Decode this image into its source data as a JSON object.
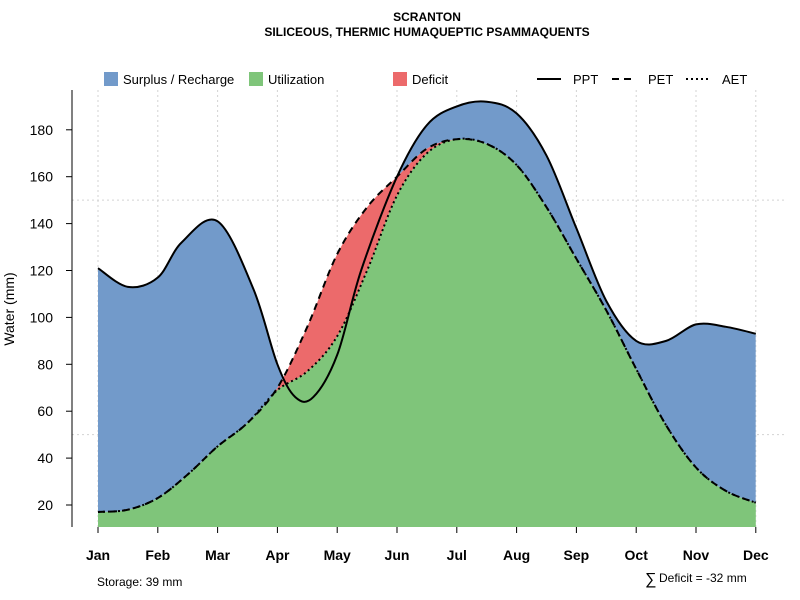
{
  "chart_data": {
    "type": "area",
    "title": "SCRANTON",
    "subtitle": "SILICEOUS, THERMIC HUMAQUEPTIC PSAMMAQUENTS",
    "ylabel": "Water (mm)",
    "xlabel": "",
    "ylim": [
      10,
      197
    ],
    "yticks": [
      20,
      40,
      60,
      80,
      100,
      120,
      140,
      160,
      180
    ],
    "categories": [
      "Jan",
      "Feb",
      "Mar",
      "Apr",
      "May",
      "Jun",
      "Jul",
      "Aug",
      "Sep",
      "Oct",
      "Nov",
      "Dec"
    ],
    "series": [
      {
        "name": "PPT",
        "style": "solid",
        "x": [
          1,
          1.5,
          2,
          2.4,
          3,
          3.6,
          4,
          4.3,
          4.6,
          5,
          5.4,
          6,
          6.5,
          7,
          7.5,
          8,
          8.5,
          9,
          9.5,
          10,
          10.5,
          11,
          11.5,
          12
        ],
        "values": [
          121,
          113,
          117,
          132,
          141,
          112,
          80,
          66,
          66,
          84,
          120,
          160,
          182,
          190,
          192,
          187,
          169,
          138,
          107,
          90,
          90,
          97,
          96,
          93
        ]
      },
      {
        "name": "PET",
        "style": "dashed",
        "x": [
          1,
          1.5,
          2,
          2.5,
          3,
          3.5,
          4,
          4.5,
          5,
          5.5,
          6,
          6.5,
          7,
          7.5,
          8,
          8.5,
          9,
          9.5,
          10,
          10.5,
          11,
          11.5,
          12
        ],
        "values": [
          17,
          18,
          23,
          33,
          45,
          55,
          70,
          96,
          127,
          147,
          160,
          172,
          176,
          174,
          165,
          147,
          125,
          103,
          78,
          54,
          36,
          26,
          21
        ]
      },
      {
        "name": "AET",
        "style": "dotted",
        "x": [
          1,
          1.5,
          2,
          2.5,
          3,
          3.5,
          4,
          4.5,
          5,
          5.5,
          6,
          6.5,
          7,
          7.5,
          8,
          8.5,
          9,
          9.5,
          10,
          10.5,
          11,
          11.5,
          12
        ],
        "values": [
          17,
          18,
          23,
          33,
          45,
          55,
          69,
          77,
          92,
          120,
          152,
          170,
          176,
          174,
          165,
          147,
          125,
          103,
          78,
          54,
          36,
          26,
          21
        ]
      }
    ],
    "legend": [
      {
        "name": "Surplus / Recharge",
        "kind": "fill",
        "color": "#729ACA"
      },
      {
        "name": "Utilization",
        "kind": "fill",
        "color": "#7FC57A"
      },
      {
        "name": "Deficit",
        "kind": "fill",
        "color": "#EC6A6B"
      },
      {
        "name": "PPT",
        "kind": "line",
        "dash": "solid"
      },
      {
        "name": "PET",
        "kind": "line",
        "dash": "dashed"
      },
      {
        "name": "AET",
        "kind": "line",
        "dash": "dotted"
      }
    ],
    "annotations": {
      "storage": "Storage: 39 mm",
      "deficit_symbol": "∑",
      "deficit": "Deficit = -32 mm"
    },
    "reference_lines": [
      50,
      150
    ],
    "grid": true
  }
}
